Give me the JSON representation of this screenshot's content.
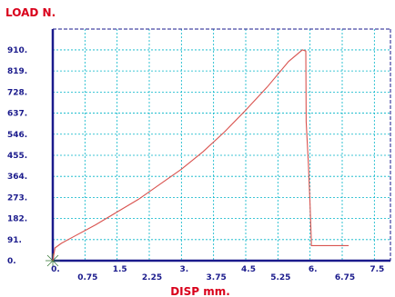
{
  "chart_data": {
    "type": "line",
    "ylabel": "LOAD  N.",
    "xlabel": "DISP  mm.",
    "xlim": [
      0,
      7.875
    ],
    "ylim": [
      0,
      1000
    ],
    "grid": true,
    "y_ticks": [
      {
        "value": 0,
        "label": "0."
      },
      {
        "value": 91,
        "label": "91."
      },
      {
        "value": 182,
        "label": "182."
      },
      {
        "value": 273,
        "label": "273."
      },
      {
        "value": 364,
        "label": "364."
      },
      {
        "value": 455,
        "label": "455."
      },
      {
        "value": 546,
        "label": "546."
      },
      {
        "value": 637,
        "label": "637."
      },
      {
        "value": 728,
        "label": "728."
      },
      {
        "value": 819,
        "label": "819."
      },
      {
        "value": 910,
        "label": "910."
      }
    ],
    "x_ticks_upper": [
      {
        "value": 0,
        "label": "0."
      },
      {
        "value": 1.5,
        "label": "1.5"
      },
      {
        "value": 3,
        "label": "3."
      },
      {
        "value": 4.5,
        "label": "4.5"
      },
      {
        "value": 6,
        "label": "6."
      },
      {
        "value": 7.5,
        "label": "7.5"
      }
    ],
    "x_ticks_lower": [
      {
        "value": 0.75,
        "label": "0.75"
      },
      {
        "value": 2.25,
        "label": "2.25"
      },
      {
        "value": 3.75,
        "label": "3.75"
      },
      {
        "value": 5.25,
        "label": "5.25"
      },
      {
        "value": 6.75,
        "label": "6.75"
      }
    ],
    "series": [
      {
        "x": [
          0,
          0.05,
          0.2,
          0.5,
          1.0,
          1.5,
          2.0,
          2.5,
          3.0,
          3.5,
          4.0,
          4.5,
          5.0,
          5.5,
          5.82,
          5.9,
          5.91,
          5.96,
          6.0,
          6.03,
          6.03,
          6.9
        ],
        "y": [
          0,
          55,
          75,
          105,
          155,
          210,
          265,
          330,
          395,
          470,
          555,
          650,
          750,
          860,
          910,
          905,
          600,
          420,
          240,
          80,
          65,
          65
        ]
      }
    ],
    "colors": {
      "axis": "#1a1a8c",
      "grid": "#00b4c8",
      "line": "#d9534f",
      "axis_title": "#d9001b",
      "tick_label": "#1a1a8c"
    }
  }
}
